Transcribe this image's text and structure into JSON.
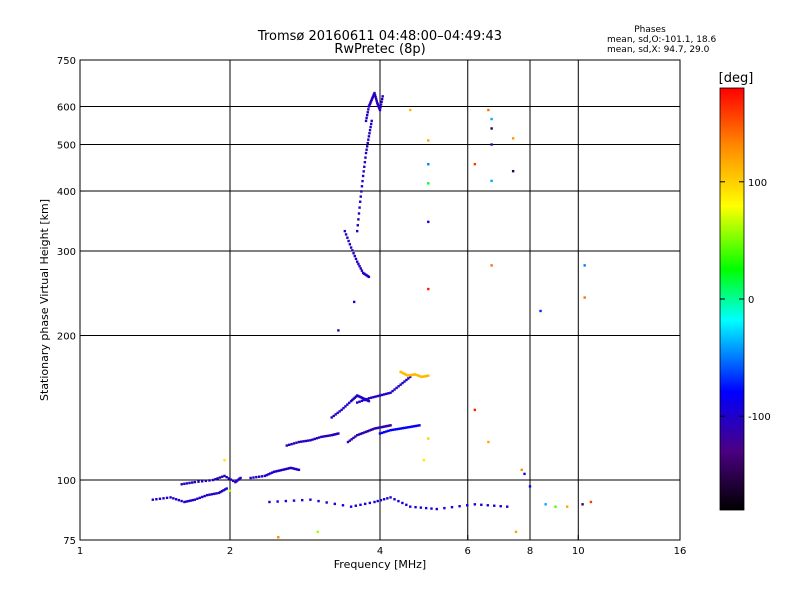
{
  "header": {
    "title_line1": "Tromsø 20160611 04:48:00–04:49:43",
    "title_line2": "RwPretec (8p)",
    "phases_heading": "Phases",
    "phases_line1": "mean, sd,O:-101.1, 18.6",
    "phases_line2": "mean, sd,X:  94.7, 29.0"
  },
  "colorbar": {
    "unit_label": "[deg]",
    "ticks": [
      {
        "label": "100",
        "value": 100
      },
      {
        "label": "0",
        "value": 0
      },
      {
        "label": "-100",
        "value": -100
      }
    ],
    "range": [
      -180,
      180
    ],
    "colors": [
      "#000000",
      "#4b0082",
      "#0000ff",
      "#00ffff",
      "#00ff00",
      "#ffff00",
      "#ff8c00",
      "#ff0000"
    ]
  },
  "chart_data": {
    "type": "scatter",
    "title": "Tromsø 20160611 04:48:00–04:49:43",
    "subtitle": "RwPretec (8p)",
    "xlabel": "Frequency [MHz]",
    "ylabel": "Stationary phase Virtual Height [km]",
    "xscale": "log",
    "yscale": "log",
    "xlim": [
      1,
      16
    ],
    "ylim": [
      75,
      750
    ],
    "x_ticks": [
      {
        "value": 1,
        "label": "1"
      },
      {
        "value": 2,
        "label": "2"
      },
      {
        "value": 4,
        "label": "4"
      },
      {
        "value": 6,
        "label": "6"
      },
      {
        "value": 8,
        "label": "8"
      },
      {
        "value": 10,
        "label": "10"
      },
      {
        "value": 16,
        "label": "16"
      }
    ],
    "y_ticks": [
      {
        "value": 75,
        "label": "75"
      },
      {
        "value": 100,
        "label": "100"
      },
      {
        "value": 200,
        "label": "200"
      },
      {
        "value": 300,
        "label": "300"
      },
      {
        "value": 400,
        "label": "400"
      },
      {
        "value": 500,
        "label": "500"
      },
      {
        "value": 600,
        "label": "600"
      },
      {
        "value": 750,
        "label": "750"
      }
    ],
    "x_grid": [
      2,
      4,
      6,
      8,
      10
    ],
    "y_grid": [
      100,
      200,
      300,
      400,
      500,
      600
    ],
    "grid": true,
    "colorbar_range": [
      -180,
      180
    ],
    "traces": [
      {
        "x": [
          1.4,
          1.52,
          1.62,
          1.7,
          1.8,
          1.9,
          1.97
        ],
        "y": [
          91,
          92,
          90,
          91,
          93,
          94,
          96
        ],
        "phase": -100
      },
      {
        "x": [
          1.6,
          1.7,
          1.85,
          1.95,
          2.05,
          2.1
        ],
        "y": [
          98,
          99,
          100,
          102,
          99,
          101
        ],
        "phase": -105
      },
      {
        "x": [
          2.2,
          2.35,
          2.45,
          2.55,
          2.65,
          2.75
        ],
        "y": [
          101,
          102,
          104,
          105,
          106,
          105
        ],
        "phase": -100
      },
      {
        "x": [
          2.6,
          2.75,
          2.9,
          3.05,
          3.2,
          3.3
        ],
        "y": [
          118,
          120,
          121,
          123,
          124,
          125
        ],
        "phase": -105
      },
      {
        "x": [
          3.2,
          3.35,
          3.5,
          3.6,
          3.7,
          3.8
        ],
        "y": [
          135,
          140,
          146,
          150,
          148,
          146
        ],
        "phase": -100
      },
      {
        "x": [
          3.45,
          3.6,
          3.75,
          3.9,
          4.05,
          4.2
        ],
        "y": [
          120,
          124,
          126,
          128,
          129,
          130
        ],
        "phase": -110
      },
      {
        "x": [
          3.6,
          3.8,
          4.0,
          4.2,
          4.4,
          4.6
        ],
        "y": [
          145,
          148,
          150,
          152,
          158,
          164
        ],
        "phase": -100
      },
      {
        "x": [
          4.0,
          4.2,
          4.4,
          4.6,
          4.8
        ],
        "y": [
          125,
          127,
          128,
          129,
          130
        ],
        "phase": -80
      },
      {
        "x": [
          3.4,
          3.5,
          3.6,
          3.7,
          3.8
        ],
        "y": [
          330,
          305,
          285,
          270,
          265
        ],
        "phase": -105
      },
      {
        "x": [
          3.6,
          3.65,
          3.7,
          3.75,
          3.8,
          3.85
        ],
        "y": [
          330,
          380,
          430,
          480,
          520,
          560
        ],
        "phase": -105
      },
      {
        "x": [
          3.75,
          3.8,
          3.85,
          3.9,
          3.95,
          4.0,
          4.05
        ],
        "y": [
          560,
          600,
          620,
          640,
          610,
          590,
          630
        ],
        "phase": -105
      },
      {
        "x": [
          4.4,
          4.55,
          4.7,
          4.85,
          5.0
        ],
        "y": [
          168,
          165,
          166,
          164,
          165
        ],
        "phase": 110
      },
      {
        "x": [
          2.4,
          2.9,
          3.5,
          3.9,
          4.2,
          4.6,
          5.2,
          6.2,
          7.2
        ],
        "y": [
          90,
          91,
          88,
          90,
          92,
          88,
          87,
          89,
          88
        ],
        "phase": -95
      }
    ],
    "points": [
      {
        "x": 3.3,
        "y": 205,
        "phase": -110
      },
      {
        "x": 3.55,
        "y": 235,
        "phase": -100
      },
      {
        "x": 4.6,
        "y": 590,
        "phase": 110
      },
      {
        "x": 5.0,
        "y": 510,
        "phase": 120
      },
      {
        "x": 5.0,
        "y": 455,
        "phase": -50
      },
      {
        "x": 5.0,
        "y": 415,
        "phase": 20
      },
      {
        "x": 5.0,
        "y": 345,
        "phase": -90
      },
      {
        "x": 5.0,
        "y": 250,
        "phase": 170
      },
      {
        "x": 6.6,
        "y": 590,
        "phase": 140
      },
      {
        "x": 6.7,
        "y": 565,
        "phase": -40
      },
      {
        "x": 6.7,
        "y": 540,
        "phase": -150
      },
      {
        "x": 6.7,
        "y": 500,
        "phase": -110
      },
      {
        "x": 6.7,
        "y": 420,
        "phase": -40
      },
      {
        "x": 6.7,
        "y": 280,
        "phase": 140
      },
      {
        "x": 6.2,
        "y": 455,
        "phase": 160
      },
      {
        "x": 6.2,
        "y": 140,
        "phase": 170
      },
      {
        "x": 6.6,
        "y": 120,
        "phase": 120
      },
      {
        "x": 7.4,
        "y": 515,
        "phase": 125
      },
      {
        "x": 7.4,
        "y": 440,
        "phase": -150
      },
      {
        "x": 8.4,
        "y": 225,
        "phase": -70
      },
      {
        "x": 10.3,
        "y": 280,
        "phase": -50
      },
      {
        "x": 10.3,
        "y": 240,
        "phase": 140
      },
      {
        "x": 7.7,
        "y": 105,
        "phase": 130
      },
      {
        "x": 7.8,
        "y": 103,
        "phase": -100
      },
      {
        "x": 8.0,
        "y": 97,
        "phase": -80
      },
      {
        "x": 8.6,
        "y": 89,
        "phase": -40
      },
      {
        "x": 9.0,
        "y": 88,
        "phase": 40
      },
      {
        "x": 9.5,
        "y": 88,
        "phase": 120
      },
      {
        "x": 10.2,
        "y": 89,
        "phase": -140
      },
      {
        "x": 10.6,
        "y": 90,
        "phase": 160
      },
      {
        "x": 5.0,
        "y": 122,
        "phase": 100
      },
      {
        "x": 4.9,
        "y": 110,
        "phase": 90
      },
      {
        "x": 2.0,
        "y": 95,
        "phase": 60
      },
      {
        "x": 1.95,
        "y": 110,
        "phase": 90
      },
      {
        "x": 2.5,
        "y": 76,
        "phase": 130
      },
      {
        "x": 3.0,
        "y": 78,
        "phase": 60
      },
      {
        "x": 7.5,
        "y": 78,
        "phase": 120
      }
    ]
  }
}
